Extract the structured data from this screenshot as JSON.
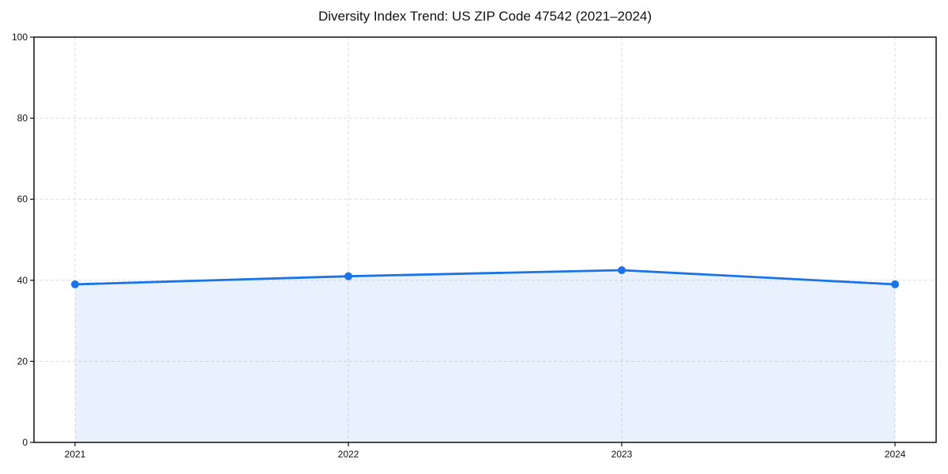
{
  "chart_data": {
    "type": "line",
    "title": "Diversity Index Trend: US ZIP Code 47542 (2021–2024)",
    "categories": [
      "2021",
      "2022",
      "2023",
      "2024"
    ],
    "values": [
      39,
      41,
      42.5,
      39
    ],
    "xlabel": "",
    "ylabel": "",
    "ylim": [
      0,
      100
    ],
    "yticks": [
      0,
      20,
      40,
      60,
      80,
      100
    ],
    "grid": true,
    "grid_style": "dashed",
    "legend": false,
    "marker": "circle",
    "colors": {
      "line": "#1a73e8",
      "marker": "#1a73e8",
      "area_fill": "rgba(26,115,232,0.10)",
      "gridline": "#dedede",
      "spine": "#111111",
      "background": "#ffffff"
    }
  }
}
